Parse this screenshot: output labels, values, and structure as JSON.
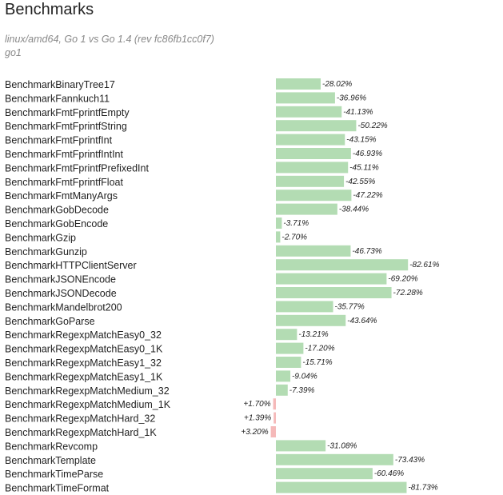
{
  "header": {
    "title": "Benchmarks",
    "subtitle": "linux/amd64, Go 1 vs Go 1.4 (rev fc86fb1cc0f7)",
    "subtitle2": "go1"
  },
  "colors": {
    "improved": "#b3dcb3",
    "regressed": "#f5b9b9"
  },
  "chart_data": {
    "type": "bar",
    "orientation": "horizontal",
    "title": "Benchmarks",
    "unit": "%",
    "categories": [
      "BenchmarkBinaryTree17",
      "BenchmarkFannkuch11",
      "BenchmarkFmtFprintfEmpty",
      "BenchmarkFmtFprintfString",
      "BenchmarkFmtFprintfInt",
      "BenchmarkFmtFprintfIntInt",
      "BenchmarkFmtFprintfPrefixedInt",
      "BenchmarkFmtFprintfFloat",
      "BenchmarkFmtManyArgs",
      "BenchmarkGobDecode",
      "BenchmarkGobEncode",
      "BenchmarkGzip",
      "BenchmarkGunzip",
      "BenchmarkHTTPClientServer",
      "BenchmarkJSONEncode",
      "BenchmarkJSONDecode",
      "BenchmarkMandelbrot200",
      "BenchmarkGoParse",
      "BenchmarkRegexpMatchEasy0_32",
      "BenchmarkRegexpMatchEasy0_1K",
      "BenchmarkRegexpMatchEasy1_32",
      "BenchmarkRegexpMatchEasy1_1K",
      "BenchmarkRegexpMatchMedium_32",
      "BenchmarkRegexpMatchMedium_1K",
      "BenchmarkRegexpMatchHard_32",
      "BenchmarkRegexpMatchHard_1K",
      "BenchmarkRevcomp",
      "BenchmarkTemplate",
      "BenchmarkTimeParse",
      "BenchmarkTimeFormat"
    ],
    "values": [
      -28.02,
      -36.96,
      -41.13,
      -50.22,
      -43.15,
      -46.93,
      -45.11,
      -42.55,
      -47.22,
      -38.44,
      -3.71,
      -2.7,
      -46.73,
      -82.61,
      -69.2,
      -72.28,
      -35.77,
      -43.64,
      -13.21,
      -17.2,
      -15.71,
      -9.04,
      -7.39,
      1.7,
      1.39,
      3.2,
      -31.08,
      -73.43,
      -60.46,
      -81.73
    ],
    "labels": [
      "-28.02%",
      "-36.96%",
      "-41.13%",
      "-50.22%",
      "-43.15%",
      "-46.93%",
      "-45.11%",
      "-42.55%",
      "-47.22%",
      "-38.44%",
      "-3.71%",
      "-2.70%",
      "-46.73%",
      "-82.61%",
      "-69.20%",
      "-72.28%",
      "-35.77%",
      "-43.64%",
      "-13.21%",
      "-17.20%",
      "-15.71%",
      "-9.04%",
      "-7.39%",
      "+1.70%",
      "+1.39%",
      "+3.20%",
      "-31.08%",
      "-73.43%",
      "-60.46%",
      "-81.73%"
    ]
  }
}
